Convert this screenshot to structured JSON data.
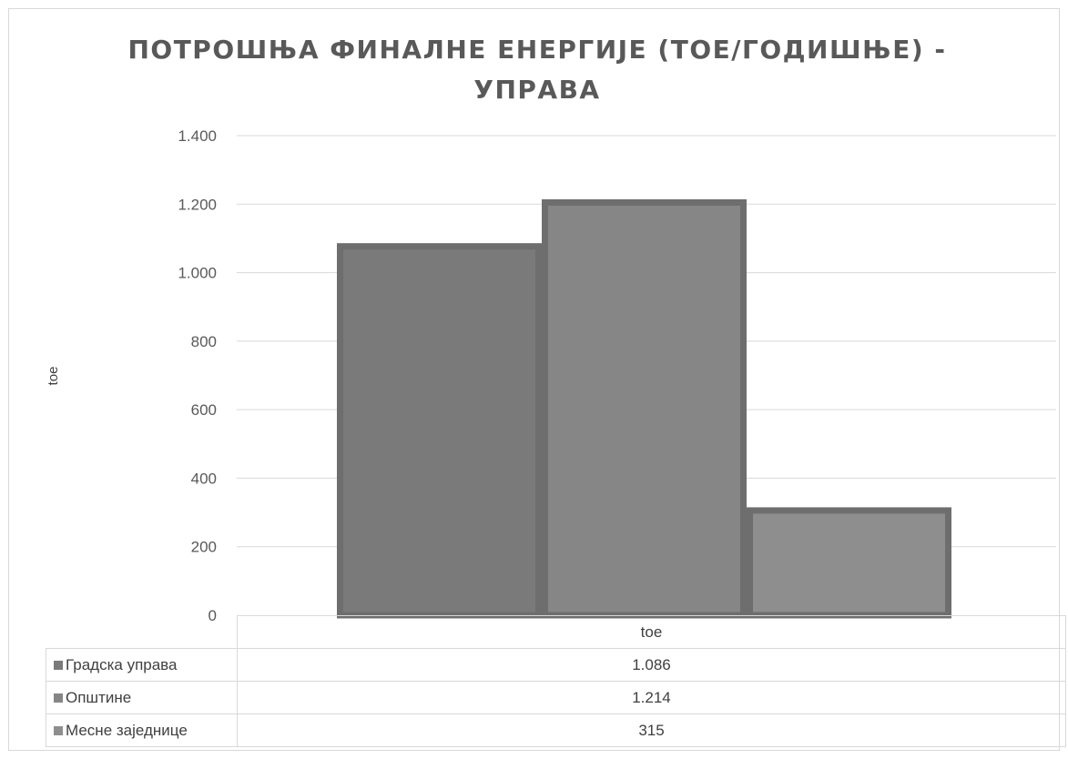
{
  "chart_data": {
    "type": "bar",
    "title_lines": [
      "ПОТРОШЊА ФИНАЛНЕ ЕНЕРГИЈЕ (ТОЕ/ГОДИШЊЕ) -",
      "УПРАВА"
    ],
    "ylabel": "toe",
    "ylim": [
      0,
      1400
    ],
    "yticks": [
      0,
      200,
      400,
      600,
      800,
      1000,
      1200,
      1400
    ],
    "ytick_labels": [
      "0",
      "200",
      "400",
      "600",
      "800",
      "1.000",
      "1.200",
      "1.400"
    ],
    "categories": [
      "toe"
    ],
    "grid": true,
    "legend": "data-table",
    "series": [
      {
        "name": "Градска управа",
        "values": [
          1086
        ],
        "label": "1.086",
        "color": "#7a7a7a"
      },
      {
        "name": "Општине",
        "values": [
          1214
        ],
        "label": "1.214",
        "color": "#868686"
      },
      {
        "name": "Месне заједнице",
        "values": [
          315
        ],
        "label": "315",
        "color": "#8e8e8e"
      }
    ],
    "bar_border_color": "#6e6e6e",
    "gridline_color": "#d9d9d9"
  }
}
